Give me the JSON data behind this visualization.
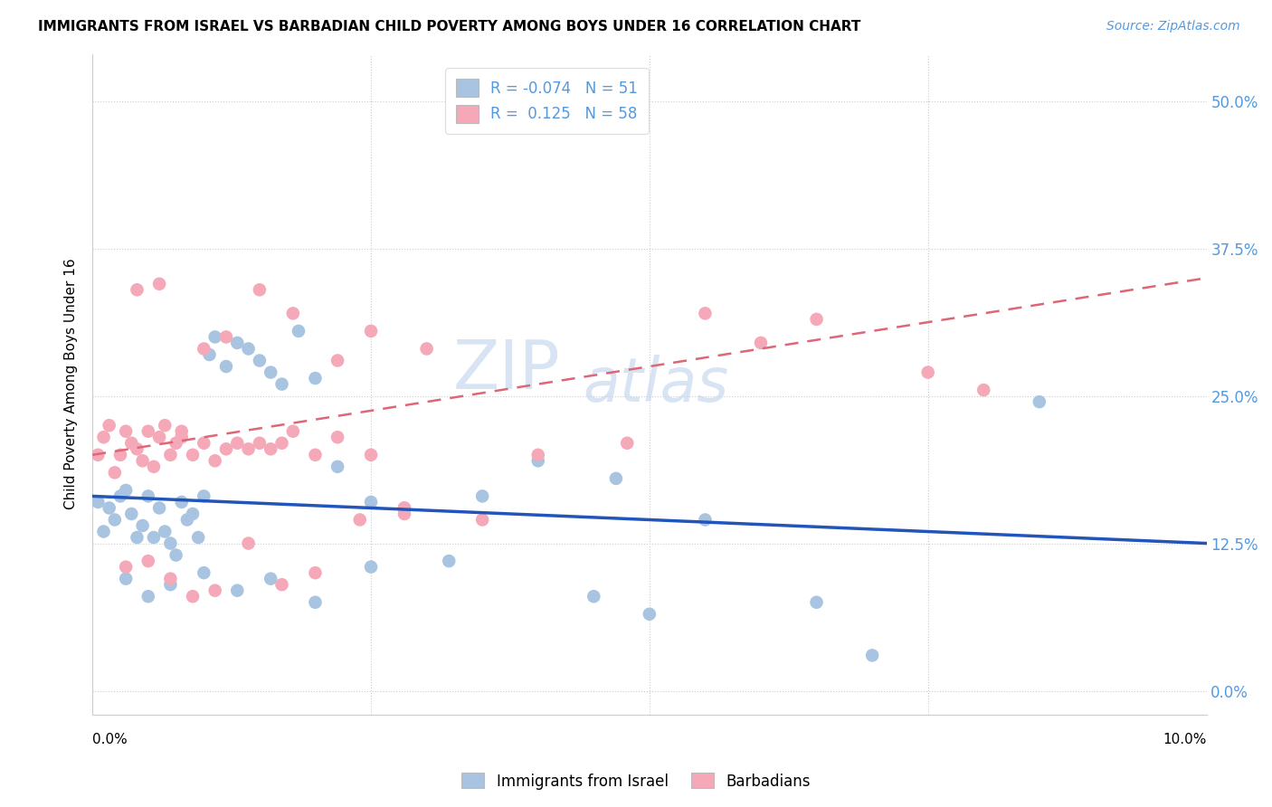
{
  "title": "IMMIGRANTS FROM ISRAEL VS BARBADIAN CHILD POVERTY AMONG BOYS UNDER 16 CORRELATION CHART",
  "source": "Source: ZipAtlas.com",
  "ylabel": "Child Poverty Among Boys Under 16",
  "ytick_vals": [
    0.0,
    12.5,
    25.0,
    37.5,
    50.0
  ],
  "xlim": [
    0.0,
    10.0
  ],
  "ylim": [
    -2.0,
    54.0
  ],
  "legend_blue_r": "-0.074",
  "legend_blue_n": "51",
  "legend_pink_r": "0.125",
  "legend_pink_n": "58",
  "blue_color": "#a8c4e0",
  "pink_color": "#f4a8b8",
  "line_blue": "#2255bb",
  "line_pink": "#dd6677",
  "watermark": "ZIPatlas",
  "blue_scatter_x": [
    0.05,
    0.1,
    0.15,
    0.2,
    0.25,
    0.3,
    0.35,
    0.4,
    0.45,
    0.5,
    0.55,
    0.6,
    0.65,
    0.7,
    0.75,
    0.8,
    0.85,
    0.9,
    0.95,
    1.0,
    1.05,
    1.1,
    1.2,
    1.3,
    1.4,
    1.5,
    1.6,
    1.7,
    1.85,
    2.0,
    2.2,
    2.5,
    2.8,
    3.5,
    4.0,
    4.7,
    5.5,
    6.5,
    8.5,
    0.3,
    0.5,
    0.7,
    1.0,
    1.3,
    1.6,
    2.0,
    2.5,
    3.2,
    4.5,
    5.0,
    7.0
  ],
  "blue_scatter_y": [
    16.0,
    13.5,
    15.5,
    14.5,
    16.5,
    17.0,
    15.0,
    13.0,
    14.0,
    16.5,
    13.0,
    15.5,
    13.5,
    12.5,
    11.5,
    16.0,
    14.5,
    15.0,
    13.0,
    16.5,
    28.5,
    30.0,
    27.5,
    29.5,
    29.0,
    28.0,
    27.0,
    26.0,
    30.5,
    26.5,
    19.0,
    16.0,
    15.5,
    16.5,
    19.5,
    18.0,
    14.5,
    7.5,
    24.5,
    9.5,
    8.0,
    9.0,
    10.0,
    8.5,
    9.5,
    7.5,
    10.5,
    11.0,
    8.0,
    6.5,
    3.0
  ],
  "pink_scatter_x": [
    0.05,
    0.1,
    0.15,
    0.2,
    0.25,
    0.3,
    0.35,
    0.4,
    0.45,
    0.5,
    0.55,
    0.6,
    0.65,
    0.7,
    0.75,
    0.8,
    0.9,
    1.0,
    1.1,
    1.2,
    1.3,
    1.4,
    1.5,
    1.6,
    1.7,
    1.8,
    2.0,
    2.2,
    2.5,
    2.8,
    0.4,
    0.6,
    0.8,
    1.0,
    1.2,
    1.5,
    1.8,
    2.2,
    2.5,
    3.0,
    0.3,
    0.5,
    0.7,
    0.9,
    1.1,
    1.4,
    1.7,
    2.0,
    2.4,
    2.8,
    3.5,
    4.0,
    4.8,
    5.5,
    6.0,
    6.5,
    7.5,
    8.0
  ],
  "pink_scatter_y": [
    20.0,
    21.5,
    22.5,
    18.5,
    20.0,
    22.0,
    21.0,
    20.5,
    19.5,
    22.0,
    19.0,
    21.5,
    22.5,
    20.0,
    21.0,
    21.5,
    20.0,
    21.0,
    19.5,
    20.5,
    21.0,
    20.5,
    21.0,
    20.5,
    21.0,
    22.0,
    20.0,
    21.5,
    20.0,
    15.5,
    34.0,
    34.5,
    22.0,
    29.0,
    30.0,
    34.0,
    32.0,
    28.0,
    30.5,
    29.0,
    10.5,
    11.0,
    9.5,
    8.0,
    8.5,
    12.5,
    9.0,
    10.0,
    14.5,
    15.0,
    14.5,
    20.0,
    21.0,
    32.0,
    29.5,
    31.5,
    27.0,
    25.5
  ],
  "blue_line_x0": 0.0,
  "blue_line_y0": 16.5,
  "blue_line_x1": 10.0,
  "blue_line_y1": 12.5,
  "pink_line_x0": 0.0,
  "pink_line_y0": 20.0,
  "pink_line_x1": 10.0,
  "pink_line_y1": 35.0
}
